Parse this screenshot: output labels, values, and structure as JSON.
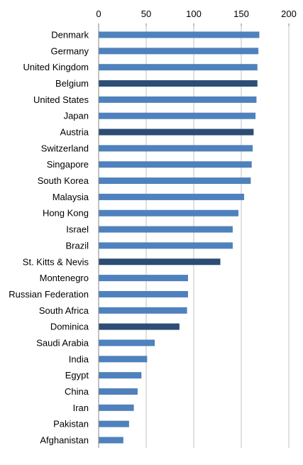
{
  "chart_data": {
    "type": "bar",
    "orientation": "horizontal",
    "title": "",
    "xlabel": "",
    "ylabel": "",
    "xlim": [
      0,
      200
    ],
    "x_ticks": [
      0,
      50,
      100,
      150,
      200
    ],
    "x_tick_labels": [
      "0",
      "50",
      "100",
      "150",
      "200"
    ],
    "axis_position": "top",
    "grid": "vertical",
    "legend": "none",
    "colors": {
      "default": "#4f81bd",
      "highlight": "#2c4d75",
      "grid": "#c0c0c0",
      "axis": "#868686"
    },
    "categories": [
      "Denmark",
      "Germany",
      "United Kingdom",
      "Belgium",
      "United States",
      "Japan",
      "Austria",
      "Switzerland",
      "Singapore",
      "South Korea",
      "Malaysia",
      "Hong Kong",
      "Israel",
      "Brazil",
      "St. Kitts & Nevis",
      "Montenegro",
      "Russian Federation",
      "South Africa",
      "Dominica",
      "Saudi Arabia",
      "India",
      "Egypt",
      "China",
      "Iran",
      "Pakistan",
      "Afghanistan"
    ],
    "values": [
      169,
      168,
      167,
      167,
      166,
      165,
      163,
      162,
      161,
      160,
      153,
      147,
      141,
      141,
      128,
      94,
      94,
      93,
      85,
      59,
      51,
      45,
      41,
      37,
      32,
      26
    ],
    "highlighted": [
      "Belgium",
      "Austria",
      "St. Kitts & Nevis",
      "Dominica"
    ]
  }
}
